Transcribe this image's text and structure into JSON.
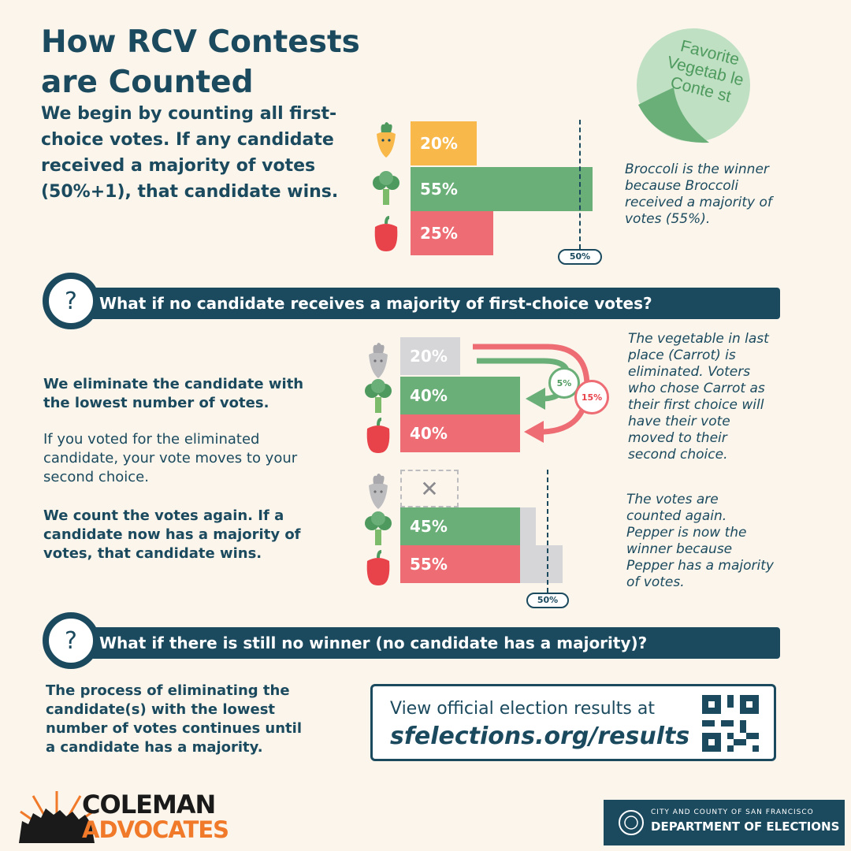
{
  "title_line1": "How RCV Contests",
  "title_line2": "are Counted",
  "intro": "We begin by counting all first-choice votes. If any candidate received a majority of votes (50%+1), that candidate wins.",
  "sticker": {
    "line1": "Favorite",
    "line2": "Vegetab le",
    "line3": "Conte st"
  },
  "round1": {
    "carrot": {
      "label": "20%",
      "value": 20
    },
    "broccoli": {
      "label": "55%",
      "value": 55
    },
    "pepper": {
      "label": "25%",
      "value": 25
    },
    "threshold_label": "50%",
    "note": "Broccoli is the winner because Broccoli received a majority of votes (55%)."
  },
  "question1": "What if no candidate receives a majority of first-choice votes?",
  "question_mark": "?",
  "steps": {
    "eliminate": "We eliminate the candidate with the lowest number of votes.",
    "moves": "If you voted for the eliminated candidate, your vote moves to your second choice.",
    "recount": "We count the votes again. If a candidate now has a majority of votes, that candidate wins."
  },
  "round2": {
    "carrot": {
      "label": "20%",
      "value": 20
    },
    "broccoli": {
      "label": "40%",
      "value": 40
    },
    "pepper": {
      "label": "40%",
      "value": 40
    },
    "transfer_broccoli": "5%",
    "transfer_pepper": "15%",
    "note": "The vegetable in last place (Carrot) is eliminated. Voters who chose Carrot as their first choice will have their vote moved to their second choice."
  },
  "round3": {
    "eliminated_mark": "✕",
    "broccoli": {
      "label": "45%",
      "value": 45
    },
    "pepper": {
      "label": "55%",
      "value": 55
    },
    "threshold_label": "50%",
    "note": "The votes are counted again. Pepper is now the winner because Pepper has a majority of votes."
  },
  "question2": "What if there is still no winner (no candidate has a majority)?",
  "process": "The process of eliminating the candidate(s) with the lowest number of votes continues until a candidate has a majority.",
  "results": {
    "line1": "View official election results at",
    "url": "sfelections.org/results"
  },
  "logo_left": {
    "line1": "COLEMAN",
    "line2": "ADVOCATES"
  },
  "logo_right": {
    "line1": "CITY AND COUNTY OF SAN FRANCISCO",
    "line2": "DEPARTMENT OF ELECTIONS"
  },
  "colors": {
    "carrot": "#f8b84a",
    "broccoli": "#6aae78",
    "pepper": "#ee6c73",
    "navy": "#1b4a5f",
    "grey": "#d6d6d8"
  }
}
